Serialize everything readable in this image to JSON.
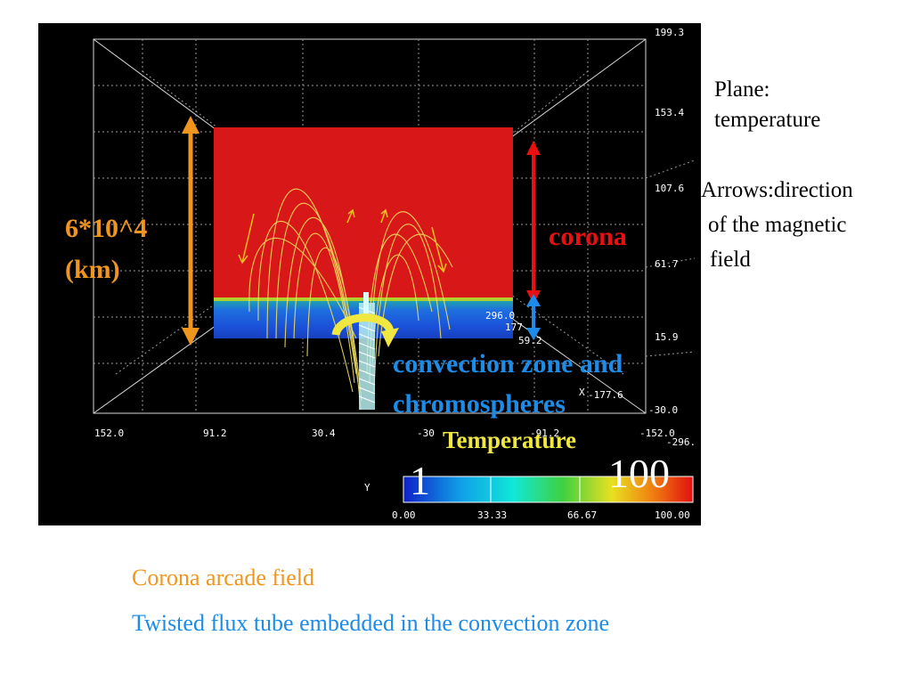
{
  "plot": {
    "z_ticks": [
      "199.3",
      "153.4",
      "107.6",
      "61.7",
      "15.9",
      "-30.0"
    ],
    "y_ticks": [
      "152.0",
      "91.2",
      "30.4",
      "-30",
      "-91.2",
      "-152.0"
    ],
    "x_ticks": [
      "296.0",
      "177",
      "59.2",
      "-177.6",
      "-296."
    ],
    "x_axis_label": "X",
    "y_axis_label": "Y",
    "colorbar_ticks": [
      "0.00",
      "33.33",
      "66.67",
      "100.00"
    ],
    "colorbar_colors": [
      "#1020c8",
      "#10a0e8",
      "#10e8d8",
      "#40d040",
      "#e8e020",
      "#f08010",
      "#e01010"
    ]
  },
  "annotations": {
    "height_line1": "6*10^4",
    "height_line2": "(km)",
    "corona": "corona",
    "convection_line1": "convection zone and",
    "convection_line2": "chromospheres",
    "temperature_title": "Temperature",
    "temp_min": "1",
    "temp_max": "100"
  },
  "notes": {
    "plane_line1": "Plane:",
    "plane_line2": "temperature",
    "arrows_line1": "Arrows:direction",
    "arrows_line2": "of the magnetic",
    "arrows_line3": "field"
  },
  "captions": {
    "corona_field": "Corona arcade field",
    "flux_tube": "Twisted flux tube embedded in the convection zone"
  },
  "colors": {
    "orange": "#f0961e",
    "red": "#e81010",
    "blue": "#1c8ce8",
    "yellow": "#f0e840",
    "corona_plane": "#d81818",
    "field_lines": "#f0e060"
  }
}
